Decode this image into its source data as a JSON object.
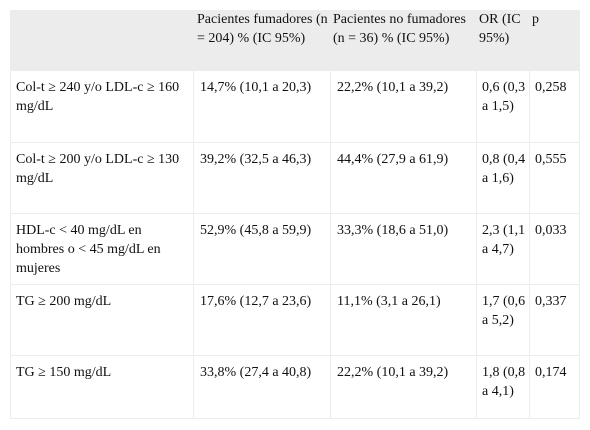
{
  "table": {
    "headers": [
      "",
      "Pacientes fumadores (n = 204) % (IC 95%)",
      "Pacientes no fumadores (n = 36) % (IC 95%)",
      "OR (IC 95%)",
      "p"
    ],
    "rows": [
      {
        "label": "Col-t ≥ 240 y/o LDL-c ≥ 160 mg/dL",
        "fumadores": "14,7% (10,1 a 20,3)",
        "no_fumadores": "22,2% (10,1 a 39,2)",
        "or": "0,6 (0,3 a 1,5)",
        "p": "0,258"
      },
      {
        "label": "Col-t ≥ 200 y/o LDL-c ≥ 130 mg/dL",
        "fumadores": "39,2% (32,5 a 46,3)",
        "no_fumadores": "44,4% (27,9 a 61,9)",
        "or": "0,8 (0,4 a 1,6)",
        "p": "0,555"
      },
      {
        "label": "HDL-c < 40 mg/dL en hombres o < 45 mg/dL en mujeres",
        "fumadores": "52,9% (45,8 a 59,9)",
        "no_fumadores": "33,3% (18,6 a 51,0)",
        "or": "2,3 (1,1 a 4,7)",
        "p": "0,033"
      },
      {
        "label": "TG ≥ 200 mg/dL",
        "fumadores": "17,6% (12,7 a 23,6)",
        "no_fumadores": "11,1% (3,1 a 26,1)",
        "or": "1,7 (0,6 a 5,2)",
        "p": "0,337"
      },
      {
        "label": "TG ≥ 150 mg/dL",
        "fumadores": "33,8% (27,4 a 40,8)",
        "no_fumadores": "22,2% (10,1 a 39,2)",
        "or": "1,8 (0,8 a 4,1)",
        "p": "0,174"
      }
    ]
  }
}
